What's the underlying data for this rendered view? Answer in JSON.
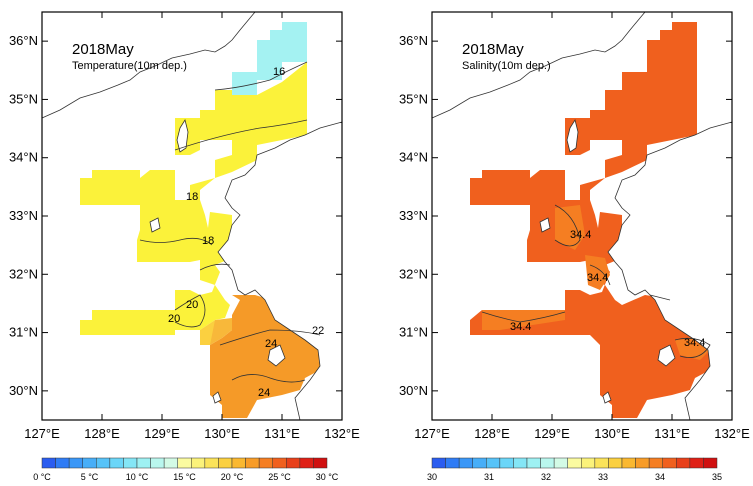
{
  "maps": [
    {
      "id": "temperature",
      "title": "2018May",
      "subtitle": "Temperature(10m dep.)",
      "contour_labels": [
        "16",
        "18",
        "18",
        "20",
        "20",
        "22",
        "24",
        "24"
      ],
      "colorbar": {
        "labels": [
          "0 °C",
          "5 °C",
          "10 °C",
          "15 °C",
          "20 °C",
          "25 °C",
          "30 °C"
        ],
        "range": [
          0,
          32
        ],
        "colors": [
          "#2a5cf0",
          "#2f7cf5",
          "#3a97f7",
          "#47aef8",
          "#57c3f8",
          "#6bd6f8",
          "#84e6f6",
          "#9ef1f3",
          "#b9f7ee",
          "#d3fbe6",
          "#fbfba0",
          "#fbf27a",
          "#fbe35a",
          "#fbd040",
          "#fab830",
          "#f89c28",
          "#f57e22",
          "#f0601e",
          "#e8401a",
          "#df2016",
          "#d01010"
        ]
      }
    },
    {
      "id": "salinity",
      "title": "2018May",
      "subtitle": "Salinity(10m dep.)",
      "contour_labels": [
        "34.4",
        "34.4",
        "34.4",
        "34.4"
      ],
      "colorbar": {
        "labels": [
          "30",
          "31",
          "32",
          "33",
          "34",
          "35"
        ],
        "range": [
          30,
          35
        ],
        "colors": [
          "#2a5cf0",
          "#2f7cf5",
          "#3a97f7",
          "#47aef8",
          "#57c3f8",
          "#6bd6f8",
          "#84e6f6",
          "#9ef1f3",
          "#b9f7ee",
          "#d3fbe6",
          "#fbfba0",
          "#fbf27a",
          "#fbe35a",
          "#fbd040",
          "#fab830",
          "#f89c28",
          "#f57e22",
          "#f0601e",
          "#e8401a",
          "#df2016",
          "#d01010"
        ]
      }
    }
  ],
  "axes": {
    "x_ticks": [
      "127°E",
      "128°E",
      "129°E",
      "130°E",
      "131°E",
      "132°E"
    ],
    "y_ticks": [
      "30°N",
      "31°N",
      "32°N",
      "33°N",
      "34°N",
      "35°N",
      "36°N"
    ],
    "lon_range": [
      127,
      132
    ],
    "lat_range": [
      29.5,
      36.5
    ]
  }
}
